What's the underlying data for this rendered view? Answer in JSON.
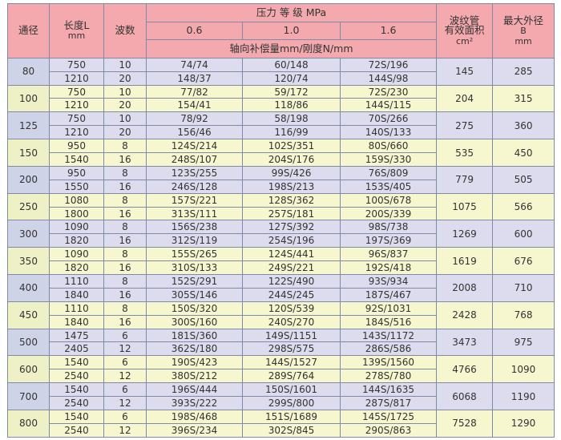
{
  "header": {
    "dn": "通径",
    "length": "长度L",
    "length_unit": "mm",
    "waves": "波数",
    "pressure": "压力 等 级 MPa",
    "pressures": [
      "0.6",
      "1.0",
      "1.6"
    ],
    "comp": "轴向补偿量mm/刚度N/mm",
    "area_l1": "波纹管",
    "area_l2": "有效面积",
    "area_unit": "cm²",
    "od_l1": "最大外径",
    "od_l2": "B",
    "od_unit": "mm"
  },
  "colors": {
    "header": "#f3a9ad",
    "row_a": "#dcdcee",
    "row_b": "#f6f6cf",
    "border": "#7f8aa6"
  },
  "groups": [
    {
      "dn": "80",
      "area": "145",
      "od": "285",
      "rows": [
        [
          "750",
          "10",
          "74/74",
          "60/148",
          "72S/196"
        ],
        [
          "1210",
          "20",
          "148/37",
          "120/74",
          "144S/98"
        ]
      ]
    },
    {
      "dn": "100",
      "area": "204",
      "od": "315",
      "rows": [
        [
          "750",
          "10",
          "77/82",
          "59/172",
          "72S/230"
        ],
        [
          "1210",
          "20",
          "154/41",
          "118/86",
          "144S/115"
        ]
      ]
    },
    {
      "dn": "125",
      "area": "275",
      "od": "360",
      "rows": [
        [
          "750",
          "10",
          "78/92",
          "58/198",
          "70S/266"
        ],
        [
          "1210",
          "20",
          "156/46",
          "116/99",
          "140S/133"
        ]
      ]
    },
    {
      "dn": "150",
      "area": "535",
      "od": "450",
      "rows": [
        [
          "950",
          "8",
          "124S/214",
          "102S/351",
          "80S/660"
        ],
        [
          "1540",
          "16",
          "248S/107",
          "204S/176",
          "159S/330"
        ]
      ]
    },
    {
      "dn": "200",
      "area": "779",
      "od": "505",
      "rows": [
        [
          "950",
          "8",
          "123S/255",
          "99S/426",
          "76S/809"
        ],
        [
          "1550",
          "16",
          "246S/128",
          "198S/213",
          "153S/405"
        ]
      ]
    },
    {
      "dn": "250",
      "area": "1075",
      "od": "566",
      "rows": [
        [
          "1080",
          "8",
          "157S/221",
          "128S/362",
          "100S/678"
        ],
        [
          "1800",
          "16",
          "313S/111",
          "257S/181",
          "200S/339"
        ]
      ]
    },
    {
      "dn": "300",
      "area": "1269",
      "od": "600",
      "rows": [
        [
          "1090",
          "8",
          "156S/238",
          "127S/392",
          "98S/738"
        ],
        [
          "1820",
          "16",
          "312S/119",
          "254S/196",
          "197S/369"
        ]
      ]
    },
    {
      "dn": "350",
      "area": "1619",
      "od": "676",
      "rows": [
        [
          "1090",
          "8",
          "155S/265",
          "124S/441",
          "96S/837"
        ],
        [
          "1820",
          "16",
          "310S/133",
          "249S/221",
          "192S/418"
        ]
      ]
    },
    {
      "dn": "400",
      "area": "2008",
      "od": "710",
      "rows": [
        [
          "1110",
          "8",
          "152S/291",
          "122S/490",
          "93S/934"
        ],
        [
          "1840",
          "16",
          "305S/146",
          "244S/245",
          "187S/467"
        ]
      ]
    },
    {
      "dn": "450",
      "area": "2428",
      "od": "768",
      "rows": [
        [
          "1110",
          "8",
          "150S/320",
          "120S/539",
          "92S/1031"
        ],
        [
          "1840",
          "16",
          "300S/160",
          "240S/270",
          "184S/516"
        ]
      ]
    },
    {
      "dn": "500",
      "area": "3473",
      "od": "975",
      "rows": [
        [
          "1475",
          "6",
          "181S/360",
          "149S/1151",
          "143S/1172"
        ],
        [
          "2405",
          "12",
          "362S/180",
          "298S/575",
          "286S/586"
        ]
      ]
    },
    {
      "dn": "600",
      "area": "4766",
      "od": "1090",
      "rows": [
        [
          "1540",
          "6",
          "190S/423",
          "144S/1527",
          "139S/1560"
        ],
        [
          "2540",
          "12",
          "380S/212",
          "289S/764",
          "278S/780"
        ]
      ]
    },
    {
      "dn": "700",
      "area": "6068",
      "od": "1190",
      "rows": [
        [
          "1540",
          "6",
          "196S/444",
          "150S/1601",
          "144S/1635"
        ],
        [
          "2540",
          "12",
          "393S/222",
          "299S/800",
          "287S/817"
        ]
      ]
    },
    {
      "dn": "800",
      "area": "7528",
      "od": "1290",
      "rows": [
        [
          "1540",
          "6",
          "198S/468",
          "151S/1689",
          "145S/1725"
        ],
        [
          "2540",
          "12",
          "396S/234",
          "302S/845",
          "290S/863"
        ]
      ]
    }
  ]
}
